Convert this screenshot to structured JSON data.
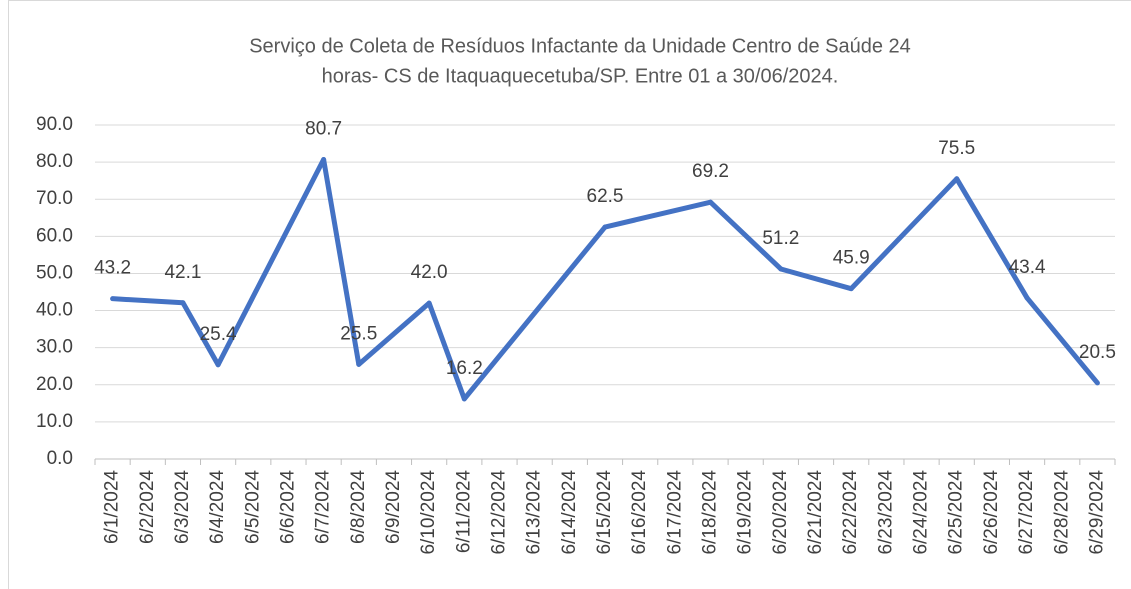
{
  "chart_data": {
    "type": "line",
    "title": [
      "Serviço de Coleta de Resíduos Infactante da Unidade Centro de Saúde 24",
      "horas- CS de Itaquaquecetuba/SP. Entre 01 a 30/06/2024."
    ],
    "categories": [
      "6/1/2024",
      "6/2/2024",
      "6/3/2024",
      "6/4/2024",
      "6/5/2024",
      "6/6/2024",
      "6/7/2024",
      "6/8/2024",
      "6/9/2024",
      "6/10/2024",
      "6/11/2024",
      "6/12/2024",
      "6/13/2024",
      "6/14/2024",
      "6/15/2024",
      "6/16/2024",
      "6/17/2024",
      "6/18/2024",
      "6/19/2024",
      "6/20/2024",
      "6/21/2024",
      "6/22/2024",
      "6/23/2024",
      "6/24/2024",
      "6/25/2024",
      "6/26/2024",
      "6/27/2024",
      "6/28/2024",
      "6/29/2024"
    ],
    "values": [
      43.2,
      null,
      42.1,
      25.4,
      null,
      null,
      80.7,
      25.5,
      null,
      42.0,
      16.2,
      null,
      null,
      null,
      62.5,
      null,
      null,
      69.2,
      null,
      51.2,
      null,
      45.9,
      null,
      null,
      75.5,
      null,
      43.4,
      null,
      20.5
    ],
    "value_labels": [
      "43.2",
      null,
      "42.1",
      "25.4",
      null,
      null,
      "80.7",
      "25.5",
      null,
      "42.0",
      "16.2",
      null,
      null,
      null,
      "62.5",
      null,
      null,
      "69.2",
      null,
      "51.2",
      null,
      "45.9",
      null,
      null,
      "75.5",
      null,
      "43.4",
      null,
      "20.5"
    ],
    "connect_gaps": true,
    "color": "#4472c4",
    "ylim": [
      0,
      90
    ],
    "yticks": [
      {
        "value": 0,
        "label": "0.0"
      },
      {
        "value": 10,
        "label": "10.0"
      },
      {
        "value": 20,
        "label": "20.0"
      },
      {
        "value": 30,
        "label": "30.0"
      },
      {
        "value": 40,
        "label": "40.0"
      },
      {
        "value": 50,
        "label": "50.0"
      },
      {
        "value": 60,
        "label": "60.0"
      },
      {
        "value": 70,
        "label": "70.0"
      },
      {
        "value": 80,
        "label": "80.0"
      },
      {
        "value": 90,
        "label": "90.0"
      }
    ],
    "grid": true
  }
}
